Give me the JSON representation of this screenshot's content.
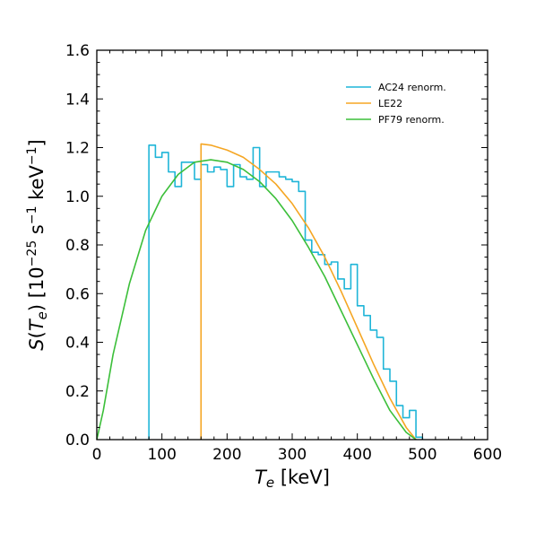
{
  "chart_data": {
    "type": "line",
    "xlabel": "T_e [keV]",
    "ylabel": "S(T_e) [10^-25 s^-1 keV^-1]",
    "xlim": [
      0,
      600
    ],
    "ylim": [
      0,
      1.6
    ],
    "xticks": [
      0,
      100,
      200,
      300,
      400,
      500,
      600
    ],
    "xtick_labels": [
      "0",
      "100",
      "200",
      "300",
      "400",
      "500",
      "600"
    ],
    "yticks": [
      0.0,
      0.2,
      0.4,
      0.6,
      0.8,
      1.0,
      1.2,
      1.4,
      1.6
    ],
    "ytick_labels": [
      "0.0",
      "0.2",
      "0.4",
      "0.6",
      "0.8",
      "1.0",
      "1.2",
      "1.4",
      "1.6"
    ],
    "legend_position": "top-right",
    "series": [
      {
        "name": "AC24 renorm.",
        "style": "step",
        "color": "#1fb5d8",
        "bin_edges": [
          80,
          90,
          100,
          110,
          120,
          130,
          140,
          150,
          160,
          170,
          180,
          190,
          200,
          210,
          220,
          230,
          240,
          250,
          260,
          270,
          280,
          290,
          300,
          310,
          320,
          330,
          340,
          350,
          360,
          370,
          380,
          390,
          400,
          410,
          420,
          430,
          440,
          450,
          460,
          470,
          480,
          490,
          500
        ],
        "values": [
          1.21,
          1.16,
          1.18,
          1.1,
          1.04,
          1.14,
          1.14,
          1.07,
          1.13,
          1.1,
          1.12,
          1.11,
          1.04,
          1.13,
          1.08,
          1.07,
          1.2,
          1.04,
          1.1,
          1.1,
          1.08,
          1.07,
          1.06,
          1.02,
          0.82,
          0.77,
          0.76,
          0.72,
          0.73,
          0.66,
          0.62,
          0.72,
          0.55,
          0.51,
          0.45,
          0.42,
          0.29,
          0.24,
          0.14,
          0.09,
          0.12,
          0.01
        ]
      },
      {
        "name": "LE22",
        "style": "line",
        "color": "#f5a623",
        "x": [
          160,
          160,
          175,
          200,
          225,
          250,
          275,
          300,
          325,
          350,
          375,
          400,
          425,
          450,
          475,
          490
        ],
        "y": [
          0.0,
          1.215,
          1.21,
          1.19,
          1.16,
          1.11,
          1.05,
          0.97,
          0.87,
          0.75,
          0.61,
          0.46,
          0.31,
          0.17,
          0.05,
          0.0
        ]
      },
      {
        "name": "PF79 renorm.",
        "style": "line",
        "color": "#3cbf3a",
        "x": [
          0,
          10,
          25,
          50,
          75,
          100,
          125,
          150,
          175,
          200,
          225,
          250,
          275,
          300,
          325,
          350,
          375,
          400,
          425,
          450,
          475,
          490
        ],
        "y": [
          0.0,
          0.12,
          0.35,
          0.64,
          0.86,
          1.0,
          1.09,
          1.14,
          1.15,
          1.14,
          1.11,
          1.06,
          0.99,
          0.9,
          0.79,
          0.67,
          0.53,
          0.39,
          0.25,
          0.12,
          0.03,
          0.0
        ]
      }
    ]
  }
}
